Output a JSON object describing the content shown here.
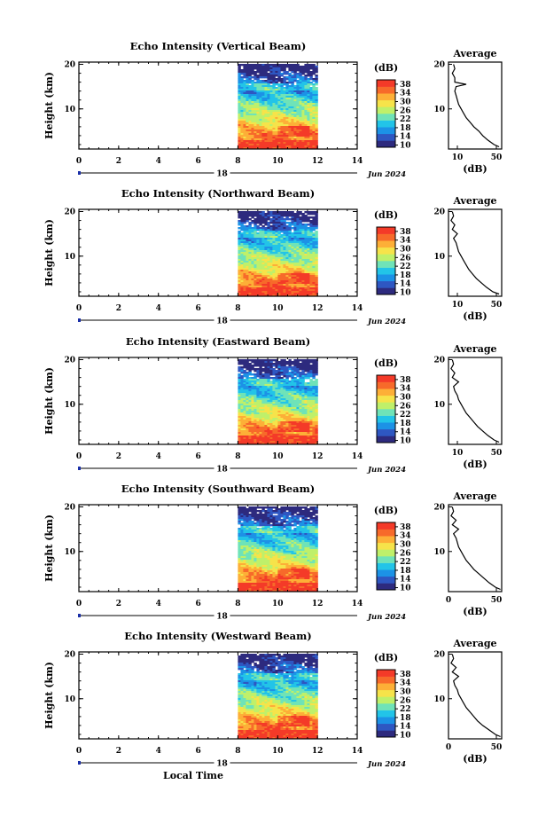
{
  "figure": {
    "xlabel": "Local Time",
    "date": "Jun 2024",
    "day": "18"
  },
  "scales": {
    "time_ticks": [
      "0",
      "2",
      "4",
      "6",
      "8",
      "10",
      "12",
      "14"
    ],
    "time_lim": [
      0,
      14
    ],
    "height_ticks": [
      "10",
      "20"
    ],
    "height_lim": [
      1,
      20.5
    ],
    "colorbar_unit": "(dB)",
    "colorbar_ticks": [
      "10",
      "14",
      "18",
      "22",
      "26",
      "30",
      "34",
      "38"
    ],
    "colorbar_lim": [
      9,
      40
    ],
    "colormap": [
      "#2d2a7e",
      "#2e57c2",
      "#1c92e6",
      "#22c4e8",
      "#6fe3b8",
      "#bff06a",
      "#f6e34a",
      "#fdaf37",
      "#f76a2a",
      "#f43a28"
    ],
    "profile_title": "Average",
    "profile_xlabel": "(dB)",
    "profile_xlim": [
      0,
      42
    ]
  },
  "chart_data": [
    {
      "type": "heatmap",
      "title": "Echo Intensity (Vertical Beam)",
      "ylabel": "Height (km)",
      "data_time_range": [
        8,
        12
      ],
      "average_profile": {
        "xticks": [
          "10",
          "50"
        ],
        "height": [
          1.5,
          2,
          3,
          4,
          5,
          6,
          7,
          8,
          9,
          10,
          11,
          12,
          13,
          14,
          15,
          15.5,
          16,
          17,
          18,
          19,
          20
        ],
        "value": [
          40,
          36,
          31,
          27,
          24,
          20,
          17,
          14,
          12,
          10,
          8,
          7,
          6,
          5,
          6,
          14,
          5,
          5,
          3,
          5,
          4
        ]
      }
    },
    {
      "type": "heatmap",
      "title": "Echo Intensity (Northward Beam)",
      "ylabel": "Height (km)",
      "data_time_range": [
        8,
        12
      ],
      "average_profile": {
        "xticks": [
          "10",
          "50"
        ],
        "height": [
          1.5,
          2,
          3,
          4,
          5,
          6,
          7,
          8,
          9,
          10,
          11,
          12,
          13,
          14,
          15,
          16,
          17,
          18,
          19,
          20
        ],
        "value": [
          40,
          35,
          30,
          26,
          22,
          19,
          16,
          14,
          12,
          10,
          8,
          7,
          6,
          4,
          7,
          3,
          5,
          2,
          4,
          3
        ]
      }
    },
    {
      "type": "heatmap",
      "title": "Echo Intensity (Eastward Beam)",
      "ylabel": "Height (km)",
      "data_time_range": [
        8,
        12
      ],
      "average_profile": {
        "xticks": [
          "10",
          "50"
        ],
        "height": [
          1.5,
          2,
          3,
          4,
          5,
          6,
          7,
          8,
          9,
          10,
          11,
          12,
          13,
          14,
          15,
          16,
          17,
          18,
          19,
          20
        ],
        "value": [
          40,
          36,
          31,
          27,
          23,
          20,
          17,
          14,
          12,
          10,
          8,
          7,
          5,
          4,
          8,
          3,
          5,
          2,
          4,
          3
        ]
      }
    },
    {
      "type": "heatmap",
      "title": "Echo Intensity (Southward Beam)",
      "ylabel": "Height (km)",
      "data_time_range": [
        8,
        12
      ],
      "average_profile": {
        "xticks": [
          "0",
          "50"
        ],
        "height": [
          1.5,
          2,
          3,
          4,
          5,
          6,
          7,
          8,
          9,
          10,
          11,
          12,
          13,
          14,
          15,
          16,
          17,
          18,
          19,
          20
        ],
        "value": [
          41,
          37,
          32,
          28,
          24,
          20,
          17,
          14,
          12,
          10,
          8,
          7,
          6,
          4,
          8,
          3,
          6,
          2,
          4,
          3
        ]
      }
    },
    {
      "type": "heatmap",
      "title": "Echo Intensity (Westward Beam)",
      "ylabel": "Height (km)",
      "data_time_range": [
        8,
        12
      ],
      "average_profile": {
        "xticks": [
          "0",
          "50"
        ],
        "height": [
          1.5,
          2,
          3,
          4,
          5,
          6,
          7,
          8,
          9,
          10,
          11,
          12,
          13,
          14,
          15,
          16,
          17,
          18,
          19,
          20
        ],
        "value": [
          41,
          37,
          32,
          27,
          23,
          20,
          17,
          14,
          12,
          10,
          8,
          7,
          5,
          4,
          8,
          3,
          6,
          2,
          4,
          3
        ]
      }
    }
  ]
}
